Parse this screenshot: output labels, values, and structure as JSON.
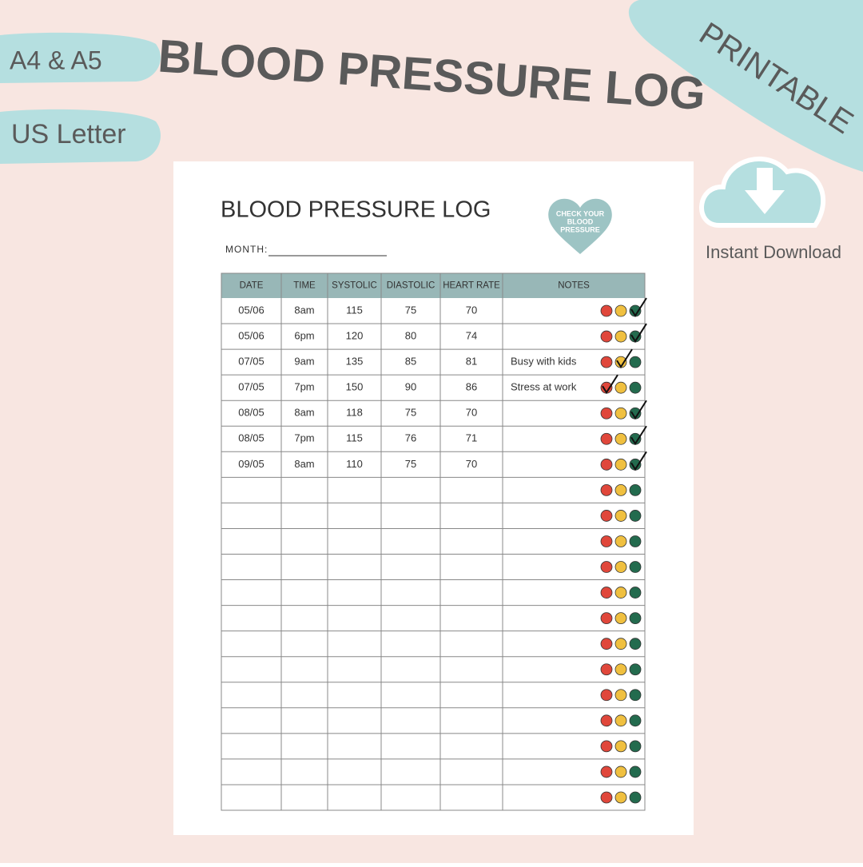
{
  "promo": {
    "sizes": [
      "A4 & A5",
      "US Letter"
    ],
    "title": "BLOOD PRESSURE LOG",
    "badge": "PRINTABLE",
    "download": "Instant Download"
  },
  "sheet": {
    "title": "BLOOD PRESSURE LOG",
    "month_label": "MONTH:",
    "heart": [
      "CHECK YOUR",
      "BLOOD",
      "PRESSURE"
    ],
    "table": {
      "headers": [
        "DATE",
        "TIME",
        "SYSTOLIC",
        "DIASTOLIC",
        "HEART RATE",
        "NOTES"
      ],
      "rows": [
        {
          "cells": [
            "05/06",
            "8am",
            "115",
            "75",
            "70",
            null
          ],
          "check": "green"
        },
        {
          "cells": [
            "05/06",
            "6pm",
            "120",
            "80",
            "74",
            null
          ],
          "check": "green"
        },
        {
          "cells": [
            "07/05",
            "9am",
            "135",
            "85",
            "81",
            "Busy with kids"
          ],
          "check": "yellow"
        },
        {
          "cells": [
            "07/05",
            "7pm",
            "150",
            "90",
            "86",
            "Stress at work"
          ],
          "check": "red"
        },
        {
          "cells": [
            "08/05",
            "8am",
            "118",
            "75",
            "70",
            null
          ],
          "check": "green"
        },
        {
          "cells": [
            "08/05",
            "7pm",
            "115",
            "76",
            "71",
            null
          ],
          "check": "green"
        },
        {
          "cells": [
            "09/05",
            "8am",
            "110",
            "75",
            "70",
            null
          ],
          "check": "green"
        },
        null,
        null,
        null,
        null,
        null,
        null,
        null,
        null,
        null,
        null,
        null,
        null,
        null
      ]
    }
  }
}
